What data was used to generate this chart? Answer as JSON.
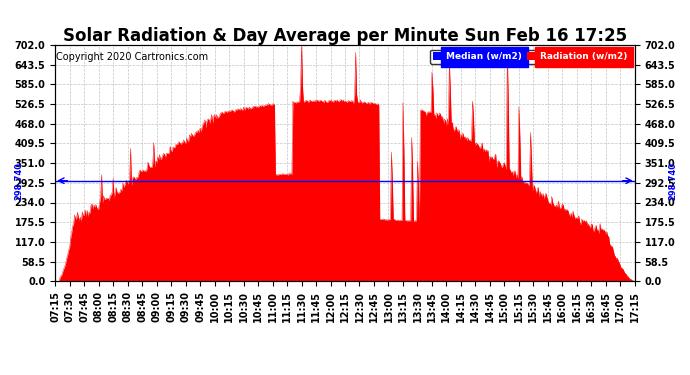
{
  "title": "Solar Radiation & Day Average per Minute Sun Feb 16 17:25",
  "copyright": "Copyright 2020 Cartronics.com",
  "median_value": 298.74,
  "y_ticks": [
    0.0,
    58.5,
    117.0,
    175.5,
    234.0,
    292.5,
    351.0,
    409.5,
    468.0,
    526.5,
    585.0,
    643.5,
    702.0
  ],
  "y_max": 702.0,
  "y_min": 0.0,
  "background_color": "#ffffff",
  "plot_bg_color": "#ffffff",
  "grid_color": "#aaaaaa",
  "fill_color": "#ff0000",
  "median_line_color": "#0000ff",
  "legend_median_bg": "#0000ff",
  "legend_radiation_bg": "#ff0000",
  "title_fontsize": 12,
  "copyright_fontsize": 7,
  "tick_fontsize": 7,
  "time_labels": [
    "07:15",
    "07:30",
    "07:45",
    "08:00",
    "08:15",
    "08:30",
    "08:45",
    "09:00",
    "09:15",
    "09:30",
    "09:45",
    "10:00",
    "10:15",
    "10:30",
    "10:45",
    "11:00",
    "11:15",
    "11:30",
    "11:45",
    "12:00",
    "12:15",
    "12:30",
    "12:45",
    "13:00",
    "13:15",
    "13:30",
    "13:45",
    "14:00",
    "14:15",
    "14:30",
    "14:45",
    "15:00",
    "15:15",
    "15:30",
    "15:45",
    "16:00",
    "16:15",
    "16:30",
    "16:45",
    "17:00",
    "17:15"
  ]
}
